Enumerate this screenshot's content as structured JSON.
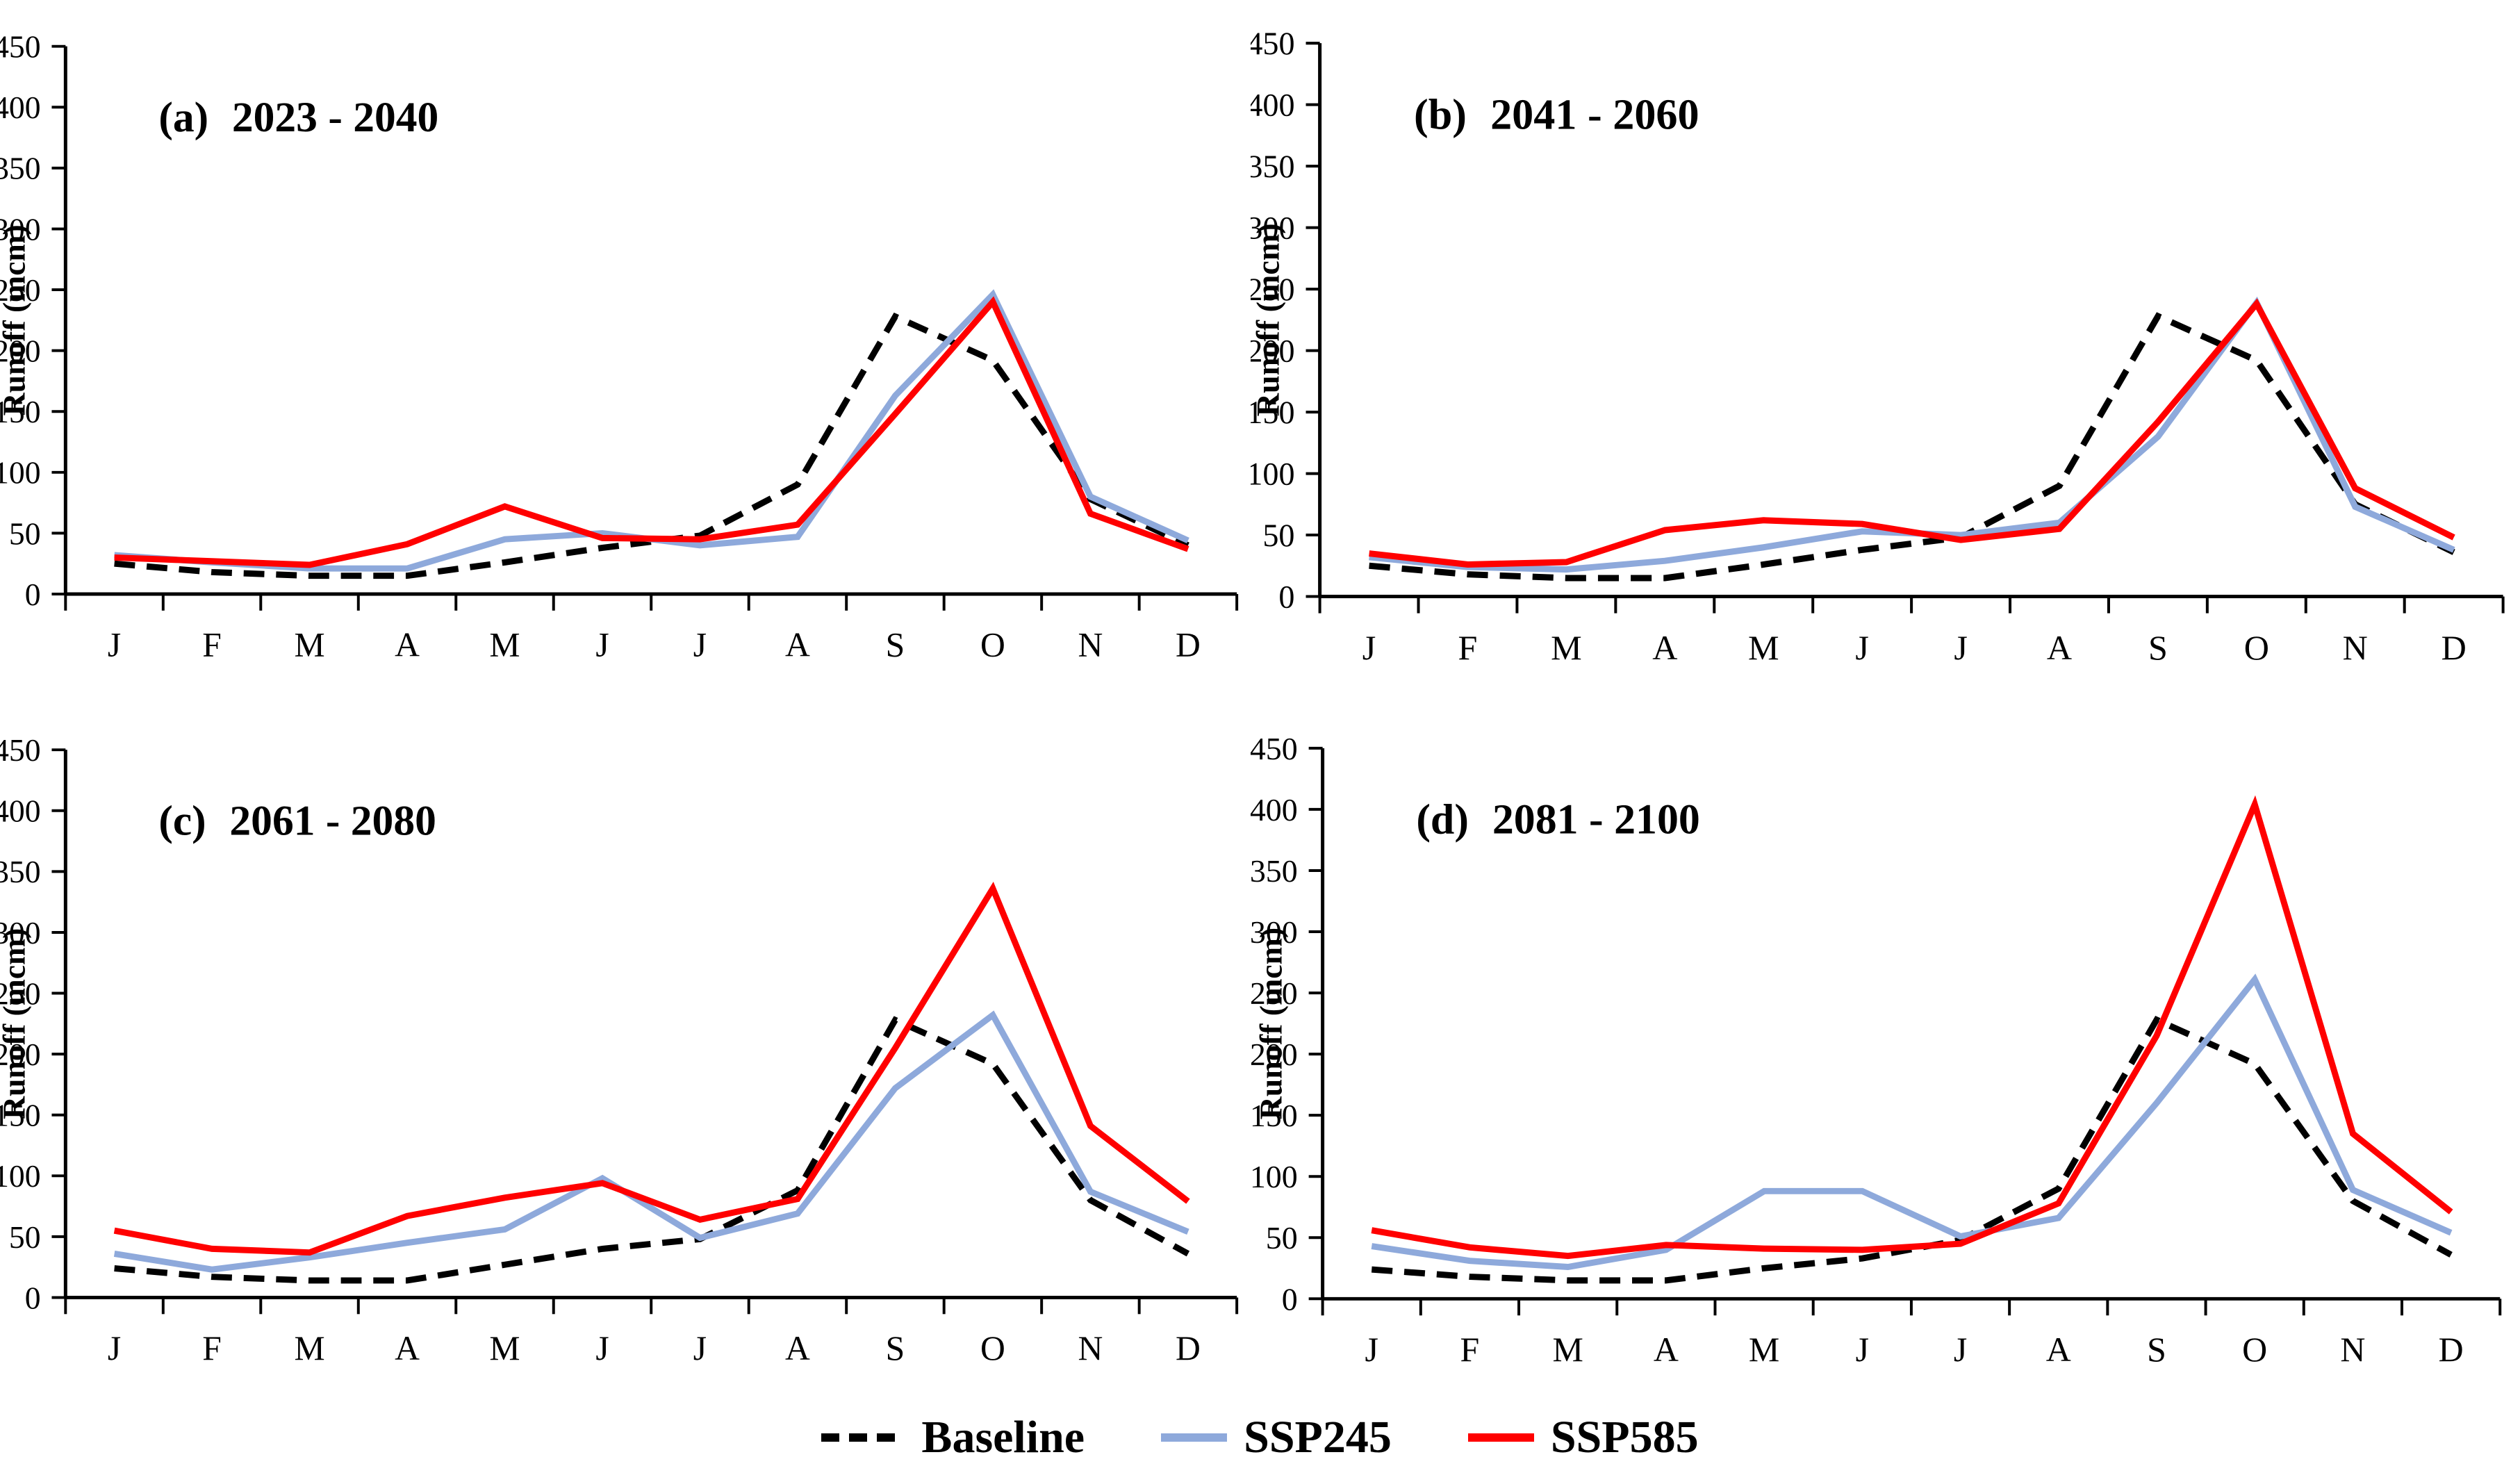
{
  "figure": {
    "background": "#ffffff",
    "ylabel": "Runoff (mcm)",
    "months": [
      "J",
      "F",
      "M",
      "A",
      "M",
      "J",
      "J",
      "A",
      "S",
      "O",
      "N",
      "D"
    ],
    "yticks": [
      0,
      50,
      100,
      150,
      200,
      250,
      300,
      350,
      400,
      450
    ],
    "colors": {
      "baseline": "#000000",
      "ssp245": "#8EA9DB",
      "ssp585": "#FF0000",
      "axis": "#000000"
    },
    "legend": [
      {
        "label": "Baseline",
        "color": "#000000",
        "style": "dashed"
      },
      {
        "label": "SSP245",
        "color": "#8EA9DB",
        "style": "solid"
      },
      {
        "label": "SSP585",
        "color": "#FF0000",
        "style": "solid"
      }
    ]
  },
  "chart_data": [
    {
      "type": "line",
      "panel": "a",
      "label_tag": "(a)",
      "title": "2023 - 2040",
      "xlabel": "",
      "ylabel": "Runoff (mcm)",
      "ylim": [
        0,
        450
      ],
      "yticks": [
        0,
        50,
        100,
        150,
        200,
        250,
        300,
        350,
        400,
        450
      ],
      "categories": [
        "J",
        "F",
        "M",
        "A",
        "M",
        "J",
        "J",
        "A",
        "S",
        "O",
        "N",
        "D"
      ],
      "legend_position": "bottom",
      "grid": false,
      "series": [
        {
          "name": "Baseline",
          "color": "#000000",
          "dash": true,
          "values": [
            25,
            18,
            15,
            15,
            26,
            38,
            48,
            90,
            228,
            192,
            78,
            40
          ]
        },
        {
          "name": "SSP245",
          "color": "#8EA9DB",
          "dash": false,
          "values": [
            32,
            26,
            21,
            21,
            45,
            50,
            40,
            47,
            163,
            246,
            80,
            44
          ]
        },
        {
          "name": "SSP585",
          "color": "#FF0000",
          "dash": false,
          "values": [
            30,
            27,
            24,
            41,
            72,
            46,
            45,
            57,
            148,
            240,
            66,
            37
          ]
        }
      ]
    },
    {
      "type": "line",
      "panel": "b",
      "label_tag": "(b)",
      "title": "2041 - 2060",
      "xlabel": "",
      "ylabel": "Runoff (mcm)",
      "ylim": [
        0,
        450
      ],
      "yticks": [
        0,
        50,
        100,
        150,
        200,
        250,
        300,
        350,
        400,
        450
      ],
      "categories": [
        "J",
        "F",
        "M",
        "A",
        "M",
        "J",
        "J",
        "A",
        "S",
        "O",
        "N",
        "D"
      ],
      "legend_position": "bottom",
      "grid": false,
      "series": [
        {
          "name": "Baseline",
          "color": "#000000",
          "dash": true,
          "values": [
            25,
            18,
            15,
            15,
            26,
            38,
            48,
            90,
            228,
            192,
            75,
            36
          ]
        },
        {
          "name": "SSP245",
          "color": "#8EA9DB",
          "dash": false,
          "values": [
            32,
            24,
            22,
            29,
            40,
            53,
            50,
            60,
            130,
            239,
            73,
            38
          ]
        },
        {
          "name": "SSP585",
          "color": "#FF0000",
          "dash": false,
          "values": [
            35,
            26,
            28,
            54,
            62,
            59,
            46,
            55,
            142,
            238,
            88,
            48
          ]
        }
      ]
    },
    {
      "type": "line",
      "panel": "c",
      "label_tag": "(c)",
      "title": "2061 - 2080",
      "xlabel": "",
      "ylabel": "Runoff (mcm)",
      "ylim": [
        0,
        450
      ],
      "yticks": [
        0,
        50,
        100,
        150,
        200,
        250,
        300,
        350,
        400,
        450
      ],
      "categories": [
        "J",
        "F",
        "M",
        "A",
        "M",
        "J",
        "J",
        "A",
        "S",
        "O",
        "N",
        "D"
      ],
      "legend_position": "bottom",
      "grid": false,
      "series": [
        {
          "name": "Baseline",
          "color": "#000000",
          "dash": true,
          "values": [
            24,
            17,
            14,
            14,
            27,
            40,
            48,
            88,
            228,
            192,
            80,
            36
          ]
        },
        {
          "name": "SSP245",
          "color": "#8EA9DB",
          "dash": false,
          "values": [
            36,
            23,
            33,
            45,
            56,
            98,
            49,
            69,
            172,
            232,
            87,
            54
          ]
        },
        {
          "name": "SSP585",
          "color": "#FF0000",
          "dash": false,
          "values": [
            55,
            40,
            37,
            67,
            82,
            94,
            64,
            81,
            205,
            336,
            141,
            79
          ]
        }
      ]
    },
    {
      "type": "line",
      "panel": "d",
      "label_tag": "(d)",
      "title": "2081 - 2100",
      "xlabel": "",
      "ylabel": "Runoff (mcm)",
      "ylim": [
        0,
        450
      ],
      "yticks": [
        0,
        50,
        100,
        150,
        200,
        250,
        300,
        350,
        400,
        450
      ],
      "categories": [
        "J",
        "F",
        "M",
        "A",
        "M",
        "J",
        "J",
        "A",
        "S",
        "O",
        "N",
        "D"
      ],
      "legend_position": "bottom",
      "grid": false,
      "series": [
        {
          "name": "Baseline",
          "color": "#000000",
          "dash": true,
          "values": [
            24,
            18,
            15,
            15,
            25,
            33,
            48,
            90,
            228,
            192,
            80,
            36
          ]
        },
        {
          "name": "SSP245",
          "color": "#8EA9DB",
          "dash": false,
          "values": [
            43,
            31,
            26,
            40,
            88,
            88,
            51,
            66,
            160,
            261,
            89,
            54
          ]
        },
        {
          "name": "SSP585",
          "color": "#FF0000",
          "dash": false,
          "values": [
            56,
            42,
            35,
            44,
            41,
            40,
            45,
            78,
            215,
            404,
            135,
            71
          ]
        }
      ]
    }
  ]
}
